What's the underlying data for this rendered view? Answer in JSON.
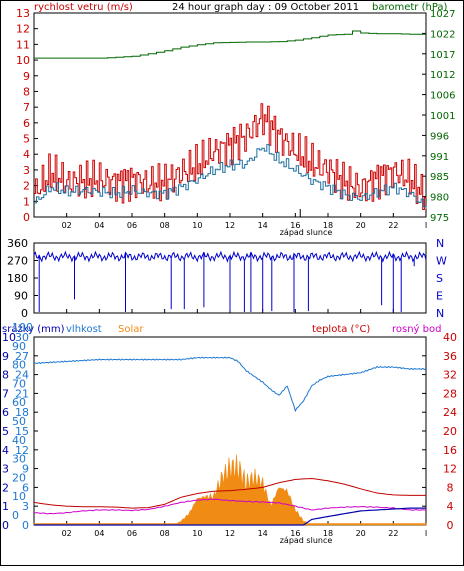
{
  "colors": {
    "wind": "#cc0000",
    "wind_avg": "#1f6f9f",
    "pressure": "#006600",
    "direction": "#0000cc",
    "rain": "#0000aa",
    "humidity": "#1e78d2",
    "solar": "#f08c14",
    "temperature": "#c00000",
    "dewpoint": "#cc00cc",
    "axis_left_top": "#cc0000",
    "axis_right_top": "#006600",
    "axis_bottom_left": "#1e78d2",
    "axis_bottom_left_outer": "#0000aa",
    "axis_bottom_right": "#cc0000"
  },
  "chart_data": [
    {
      "type": "line",
      "title": "24 hour graph day : 09 October 2011",
      "left_label": "rychlost vetru (m/s)",
      "right_label": "barometr (hPa)",
      "x_label": "západ slunce",
      "x_ticks": [
        "02",
        "04",
        "06",
        "08",
        "10",
        "12",
        "14",
        "16",
        "18",
        "20",
        "22",
        "I"
      ],
      "xlim": [
        0,
        24
      ],
      "left_ticks": [
        "0",
        "1",
        "2",
        "3",
        "4",
        "5",
        "6",
        "7",
        "8",
        "9",
        "10",
        "11",
        "12",
        "13"
      ],
      "ylim_left": [
        0,
        13
      ],
      "right_ticks": [
        "975",
        "980",
        "985",
        "991",
        "996",
        "1001",
        "1006",
        "1012",
        "1017",
        "1022",
        "1027"
      ],
      "ylim_right": [
        975,
        1027
      ],
      "sunset_hour": 16.3,
      "series": [
        {
          "key": "gust",
          "x": [
            0,
            1,
            2,
            3,
            4,
            5,
            6,
            7,
            8,
            9,
            10,
            11,
            12,
            13,
            14,
            15,
            16,
            17,
            18,
            19,
            20,
            21,
            22,
            23,
            24
          ],
          "values": [
            1.5,
            2.8,
            2.2,
            2.3,
            2.4,
            2.2,
            2.4,
            2.1,
            2.2,
            2.8,
            3.3,
            4.2,
            4.6,
            5.2,
            6.4,
            5.1,
            4.2,
            3.4,
            3.0,
            2.2,
            1.8,
            2.5,
            2.9,
            2.4,
            1.2
          ]
        },
        {
          "key": "average",
          "x": [
            0,
            1,
            2,
            3,
            4,
            5,
            6,
            7,
            8,
            9,
            10,
            11,
            12,
            13,
            14,
            15,
            16,
            17,
            18,
            19,
            20,
            21,
            22,
            23,
            24
          ],
          "values": [
            0.9,
            1.9,
            1.6,
            1.7,
            1.6,
            1.5,
            1.7,
            1.5,
            1.5,
            1.9,
            2.4,
            3.0,
            3.3,
            3.4,
            4.5,
            3.6,
            3.0,
            2.3,
            1.9,
            1.4,
            1.2,
            1.6,
            1.9,
            1.5,
            0.6
          ]
        },
        {
          "key": "pressure",
          "x": [
            0,
            2,
            4,
            5,
            6,
            7,
            8,
            9,
            10,
            11,
            12,
            13,
            14,
            15,
            16,
            17,
            18,
            19,
            19.5,
            20,
            21,
            22,
            23,
            24
          ],
          "values": [
            1015.5,
            1015.5,
            1015.5,
            1015.7,
            1016.0,
            1016.6,
            1017.4,
            1018.3,
            1018.9,
            1019.4,
            1019.5,
            1019.6,
            1019.6,
            1019.7,
            1020.1,
            1020.7,
            1021.4,
            1021.6,
            1022.4,
            1021.9,
            1021.7,
            1021.7,
            1021.6,
            1021.6
          ]
        }
      ]
    },
    {
      "type": "line",
      "right_labels": [
        "N",
        "W",
        "S",
        "E",
        "N"
      ],
      "left_ticks": [
        "0",
        "90",
        "180",
        "270",
        "360"
      ],
      "ylim": [
        0,
        360
      ],
      "x_ticks": [
        "02",
        "04",
        "06",
        "08",
        "10",
        "12",
        "14",
        "16",
        "18",
        "20",
        "22",
        "I"
      ],
      "baseline": 290,
      "drops": [
        {
          "x": 0.3,
          "value": 5
        },
        {
          "x": 2.5,
          "value": 70
        },
        {
          "x": 5.6,
          "value": 5
        },
        {
          "x": 8.4,
          "value": 20
        },
        {
          "x": 9.2,
          "value": 20
        },
        {
          "x": 10.4,
          "value": 30
        },
        {
          "x": 12.0,
          "value": 10
        },
        {
          "x": 12.9,
          "value": 5
        },
        {
          "x": 13.3,
          "value": 5
        },
        {
          "x": 14.0,
          "value": 10
        },
        {
          "x": 14.6,
          "value": 10
        },
        {
          "x": 15.9,
          "value": 5
        },
        {
          "x": 16.8,
          "value": 10
        },
        {
          "x": 21.3,
          "value": 40
        },
        {
          "x": 22.0,
          "value": 5
        },
        {
          "x": 22.5,
          "value": 5
        },
        {
          "x": 23.3,
          "value": 240
        }
      ]
    },
    {
      "type": "area",
      "labels": {
        "rain": "srážky (mm)",
        "humidity": "vlhkost",
        "solar": "Solar",
        "temperature": "teplota (°C)",
        "dewpoint": "rosný bod"
      },
      "x_label": "západ slunce",
      "x_ticks": [
        "02",
        "04",
        "06",
        "08",
        "10",
        "12",
        "14",
        "16",
        "18",
        "20",
        "22",
        "I"
      ],
      "xlim": [
        0,
        24
      ],
      "rain_ticks": [
        "0",
        "1",
        "2",
        "3",
        "4",
        "5",
        "6",
        "7",
        "8",
        "9",
        "10"
      ],
      "ylim_rain": [
        0,
        10
      ],
      "humidity_ticks": [
        "0",
        "3",
        "6",
        "9",
        "12",
        "15",
        "18",
        "21",
        "24",
        "27",
        "30"
      ],
      "ylim_humidity": [
        0,
        30
      ],
      "left_ticks": [
        "0",
        "10",
        "20",
        "30",
        "40",
        "50",
        "60",
        "70",
        "80",
        "90",
        "100"
      ],
      "ylim_left": [
        0,
        100
      ],
      "right_ticks": [
        "0",
        "4",
        "8",
        "12",
        "16",
        "20",
        "24",
        "28",
        "32",
        "36",
        "40"
      ],
      "ylim_right": [
        0,
        40
      ],
      "series": [
        {
          "key": "humidity",
          "x": [
            0,
            2,
            4,
            6,
            8,
            9,
            10,
            11,
            12,
            12.5,
            13,
            13.5,
            14,
            14.5,
            15,
            15.5,
            16,
            16.5,
            17,
            17.5,
            18,
            19,
            20,
            21,
            22,
            23,
            24
          ],
          "values": [
            86,
            87,
            88,
            88,
            88,
            88,
            89,
            89,
            89,
            87,
            82,
            79,
            76,
            72,
            69,
            74,
            61,
            66,
            74,
            77,
            79,
            80,
            81,
            84,
            84,
            83,
            83
          ]
        },
        {
          "key": "solar",
          "x": [
            0,
            7.5,
            8.0,
            8.4,
            8.6,
            9.0,
            9.5,
            10.0,
            10.5,
            11.0,
            11.5,
            12.0,
            12.5,
            13.0,
            13.5,
            14.0,
            14.5,
            15.0,
            15.5,
            16.0,
            16.5,
            17.0,
            24
          ],
          "values": [
            0,
            0,
            0,
            0,
            0,
            2,
            6,
            14,
            15,
            15,
            25,
            30,
            30,
            22,
            25,
            22,
            10,
            20,
            18,
            8,
            2,
            0,
            0
          ]
        },
        {
          "key": "temperature",
          "x": [
            0,
            1,
            2,
            3,
            4,
            5,
            6,
            7,
            8,
            9,
            10,
            11,
            12,
            13,
            14,
            15,
            16,
            17,
            18,
            19,
            20,
            21,
            22,
            23,
            24
          ],
          "values": [
            4.8,
            4.3,
            4.0,
            3.9,
            3.9,
            3.8,
            3.6,
            3.7,
            4.4,
            5.9,
            6.7,
            7.2,
            7.3,
            7.6,
            8.0,
            9.0,
            9.7,
            9.9,
            9.4,
            8.7,
            7.7,
            6.8,
            6.4,
            6.3,
            6.3
          ]
        },
        {
          "key": "dewpoint",
          "x": [
            0,
            1,
            2,
            3,
            4,
            5,
            6,
            7,
            8,
            9,
            10,
            11,
            12,
            13,
            14,
            15,
            16,
            17,
            18,
            19,
            20,
            21,
            22,
            23,
            24
          ],
          "values": [
            2.6,
            2.4,
            2.6,
            3.0,
            3.2,
            3.2,
            3.1,
            3.3,
            4.0,
            4.8,
            5.3,
            5.5,
            5.2,
            5.0,
            4.9,
            4.7,
            4.0,
            3.2,
            3.6,
            3.8,
            3.9,
            3.8,
            3.6,
            3.2,
            3.2
          ]
        },
        {
          "key": "rain",
          "x": [
            0,
            16.5,
            17,
            18,
            19,
            20,
            21,
            22,
            23,
            24
          ],
          "values": [
            0,
            0,
            0.3,
            0.45,
            0.6,
            0.75,
            0.8,
            0.85,
            0.9,
            0.9
          ]
        }
      ]
    }
  ]
}
